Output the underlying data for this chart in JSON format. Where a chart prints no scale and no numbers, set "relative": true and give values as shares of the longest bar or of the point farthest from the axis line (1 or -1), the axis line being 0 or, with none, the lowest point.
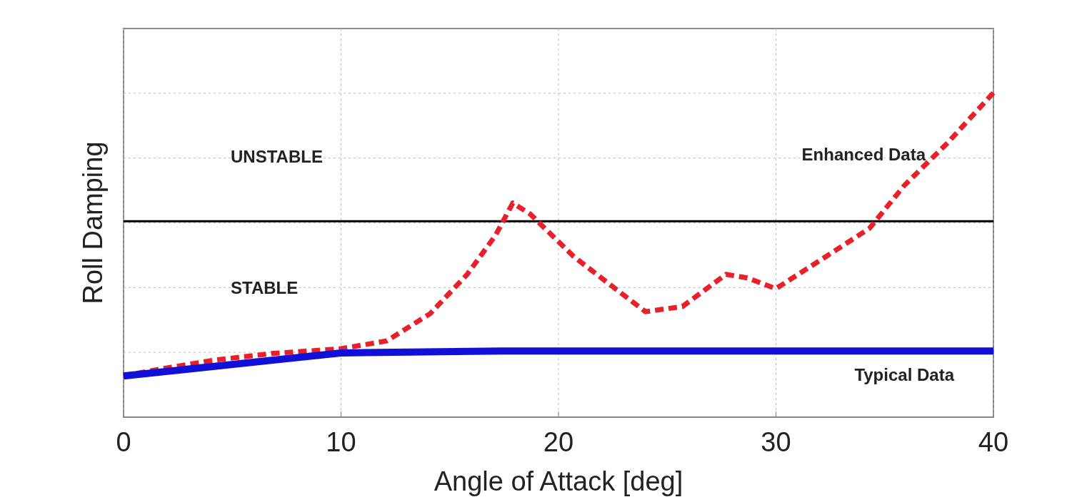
{
  "chart_data": {
    "type": "line",
    "xlabel": "Angle of Attack [deg]",
    "ylabel": "Roll Damping",
    "relative": true,
    "xlim": [
      0,
      40
    ],
    "xticks": [
      0,
      10,
      20,
      30,
      40
    ],
    "grid": true,
    "series": [
      {
        "name": "Enhanced Data",
        "color": "#e8202a",
        "line_style": "dashed",
        "x": [
          0,
          2,
          4.2,
          6.8,
          10,
          12.1,
          14.1,
          15.8,
          17.1,
          17.9,
          18.7,
          20.7,
          22.4,
          24,
          25.7,
          27.7,
          28.7,
          30,
          32.3,
          34.3,
          35.9,
          37.9,
          40
        ],
        "values": [
          0.127,
          0.152,
          0.176,
          0.196,
          0.211,
          0.235,
          0.319,
          0.44,
          0.56,
          0.66,
          0.626,
          0.495,
          0.407,
          0.325,
          0.341,
          0.44,
          0.429,
          0.396,
          0.495,
          0.582,
          0.714,
          0.846,
          1
        ]
      },
      {
        "name": "Typical Data",
        "color": "#1010d8",
        "line_style": "solid",
        "x": [
          0,
          10,
          17.4,
          40
        ],
        "values": [
          0.127,
          0.198,
          0.204,
          0.204
        ]
      }
    ],
    "ref_lines": [
      {
        "axis": "y",
        "value": 0.604,
        "color": "#000000"
      }
    ],
    "annotations": [
      "UNSTABLE",
      "STABLE"
    ]
  }
}
